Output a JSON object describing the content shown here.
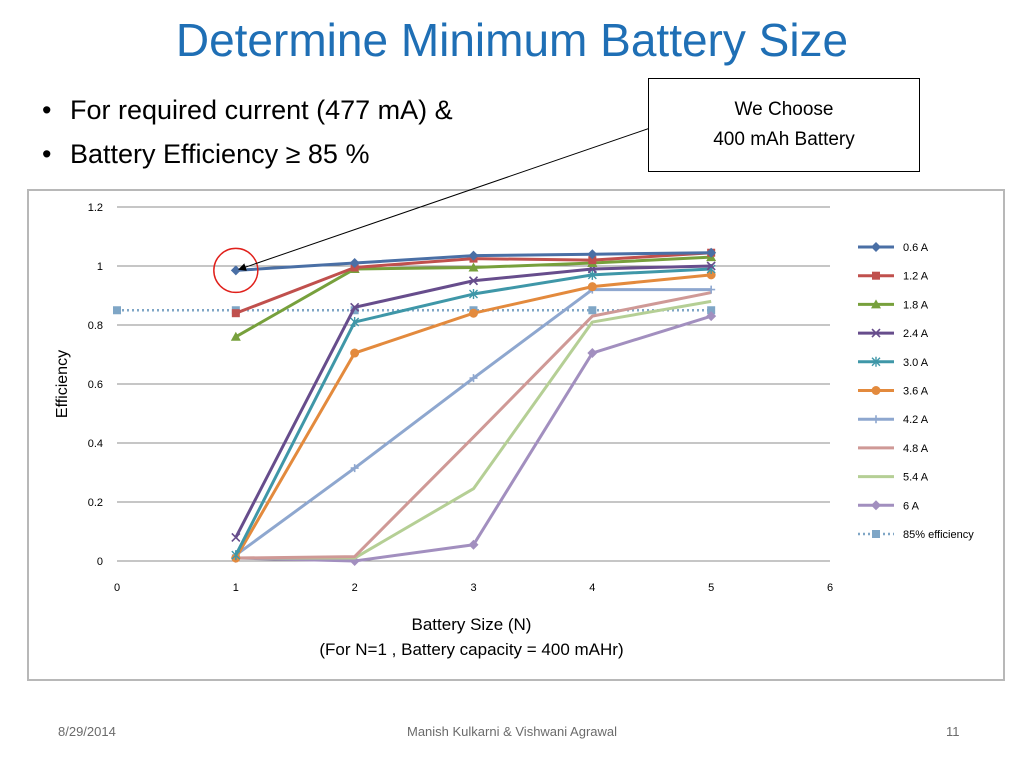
{
  "slide": {
    "title": "Determine Minimum Battery Size",
    "bullets": [
      "For required current (477 mA) &",
      "Battery Efficiency ≥ 85 %"
    ],
    "callout": {
      "line1": "We Choose",
      "line2": "400 mAh Battery"
    },
    "footer": {
      "date": "8/29/2014",
      "authors": "Manish Kulkarni & Vishwani Agrawal",
      "page": "11"
    }
  },
  "chart_data": {
    "type": "line",
    "xlabel": "Battery Size (N)",
    "xlabel2": "(For N=1 , Battery capacity = 400 mAHr)",
    "ylabel": "Efficiency",
    "xlim": [
      0,
      6
    ],
    "ylim": [
      0,
      1.2
    ],
    "xticks": [
      "0",
      "1",
      "2",
      "3",
      "4",
      "5",
      "6"
    ],
    "yticks": [
      "0",
      "0.2",
      "0.4",
      "0.6",
      "0.8",
      "1",
      "1.2"
    ],
    "grid": true,
    "legend_position": "right",
    "series": [
      {
        "name": "0.6 A",
        "color": "#4a6fa5",
        "marker": "diamond",
        "x": [
          1,
          2,
          3,
          4,
          5
        ],
        "y": [
          0.985,
          1.01,
          1.035,
          1.04,
          1.045
        ]
      },
      {
        "name": "1.2 A",
        "color": "#c0504d",
        "marker": "square",
        "x": [
          1,
          2,
          3,
          4,
          5
        ],
        "y": [
          0.84,
          0.995,
          1.025,
          1.02,
          1.045
        ]
      },
      {
        "name": "1.8 A",
        "color": "#77a03c",
        "marker": "triangle",
        "x": [
          1,
          2,
          3,
          4,
          5
        ],
        "y": [
          0.76,
          0.99,
          0.995,
          1.01,
          1.03
        ]
      },
      {
        "name": "2.4 A",
        "color": "#674d8c",
        "marker": "x",
        "x": [
          1,
          2,
          3,
          4,
          5
        ],
        "y": [
          0.08,
          0.86,
          0.95,
          0.99,
          1.0
        ]
      },
      {
        "name": "3.0 A",
        "color": "#3f97a8",
        "marker": "star",
        "x": [
          1,
          2,
          3,
          4,
          5
        ],
        "y": [
          0.02,
          0.81,
          0.905,
          0.97,
          0.99
        ]
      },
      {
        "name": "3.6 A",
        "color": "#e38a3d",
        "marker": "circle",
        "x": [
          1,
          2,
          3,
          4,
          5
        ],
        "y": [
          0.01,
          0.705,
          0.84,
          0.93,
          0.97
        ]
      },
      {
        "name": "4.2 A",
        "color": "#8ea7cf",
        "marker": "plus",
        "x": [
          1,
          2,
          3,
          4,
          5
        ],
        "y": [
          0.02,
          0.315,
          0.62,
          0.92,
          0.92
        ]
      },
      {
        "name": "4.8 A",
        "color": "#cf9996",
        "marker": "none",
        "x": [
          1,
          2,
          3,
          4,
          5
        ],
        "y": [
          0.01,
          0.015,
          0.42,
          0.83,
          0.91
        ]
      },
      {
        "name": "5.4 A",
        "color": "#b5cf95",
        "marker": "none",
        "x": [
          1,
          2,
          3,
          4,
          5
        ],
        "y": [
          0.01,
          0.01,
          0.245,
          0.81,
          0.88
        ]
      },
      {
        "name": "6 A",
        "color": "#a28fbf",
        "marker": "diamond",
        "x": [
          1,
          2,
          3,
          4,
          5
        ],
        "y": [
          0.01,
          0.0,
          0.055,
          0.705,
          0.83
        ]
      },
      {
        "name": "85% efficiency",
        "color": "#7fa6c6",
        "marker": "square",
        "dashed": true,
        "x": [
          0,
          1,
          2,
          3,
          4,
          5
        ],
        "y": [
          0.85,
          0.85,
          0.85,
          0.85,
          0.85,
          0.85
        ]
      }
    ],
    "annotation": {
      "text": "We Choose 400 mAh Battery",
      "points_to": {
        "x": 1,
        "y": 0.985
      }
    }
  }
}
